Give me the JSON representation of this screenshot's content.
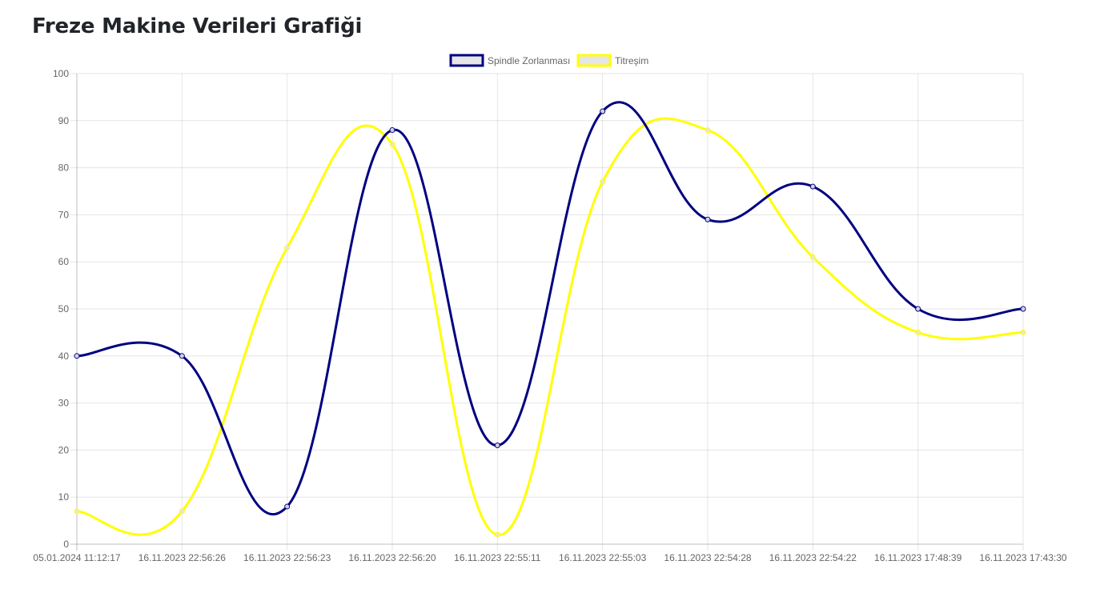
{
  "page": {
    "title": "Freze Makine Verileri Grafiği"
  },
  "chart_data": {
    "type": "line",
    "title": "Freze Makine Verileri Grafiği",
    "xlabel": "",
    "ylabel": "",
    "ylim": [
      0,
      100
    ],
    "y_ticks": [
      0,
      10,
      20,
      30,
      40,
      50,
      60,
      70,
      80,
      90,
      100
    ],
    "grid": true,
    "legend_position": "top-center",
    "categories": [
      "05.01.2024 11:12:17",
      "16.11.2023 22:56:26",
      "16.11.2023 22:56:23",
      "16.11.2023 22:56:20",
      "16.11.2023 22:55:11",
      "16.11.2023 22:55:03",
      "16.11.2023 22:54:28",
      "16.11.2023 22:54:22",
      "16.11.2023 17:48:39",
      "16.11.2023 17:43:30"
    ],
    "series": [
      {
        "name": "Spindle Zorlanması",
        "color": "#000080",
        "values": [
          40,
          40,
          8,
          88,
          21,
          92,
          69,
          76,
          50,
          50
        ]
      },
      {
        "name": "Titreşim",
        "color": "#ffff00",
        "values": [
          7,
          7,
          63,
          85,
          2,
          77,
          88,
          61,
          45,
          45
        ]
      }
    ]
  }
}
